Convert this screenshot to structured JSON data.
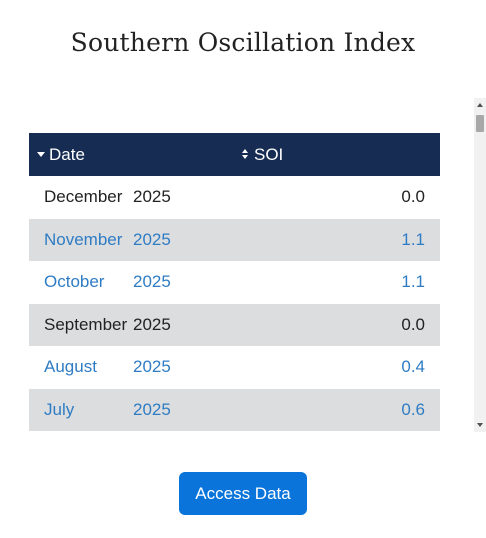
{
  "page": {
    "title": "Southern Oscillation Index"
  },
  "table": {
    "headers": {
      "date": "Date",
      "soi": "SOI"
    },
    "rows": [
      {
        "month": "December",
        "year": "2025",
        "value": "0.0",
        "style": "black"
      },
      {
        "month": "November",
        "year": "2025",
        "value": "1.1",
        "style": "blue"
      },
      {
        "month": "October",
        "year": "2025",
        "value": "1.1",
        "style": "blue"
      },
      {
        "month": "September",
        "year": "2025",
        "value": "0.0",
        "style": "black"
      },
      {
        "month": "August",
        "year": "2025",
        "value": "0.4",
        "style": "blue"
      },
      {
        "month": "July",
        "year": "2025",
        "value": "0.6",
        "style": "blue"
      }
    ]
  },
  "actions": {
    "access_label": "Access Data"
  },
  "colors": {
    "header_bg": "#162c52",
    "alt_row_bg": "#dcdddf",
    "link_blue": "#2f7cc4",
    "button_bg": "#0a74da"
  },
  "icons": {
    "date_sort": "sort-descending-icon",
    "soi_sort": "sort-both-icon"
  }
}
